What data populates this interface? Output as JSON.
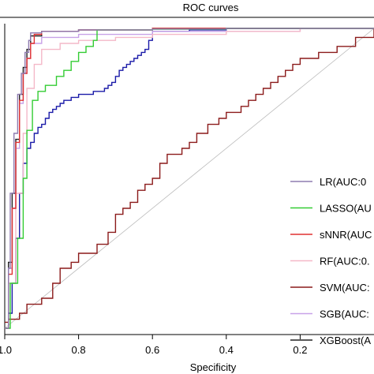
{
  "chart_data": {
    "type": "line",
    "title": "ROC curves",
    "xlabel": "Specificity",
    "ylabel": "",
    "xlim": [
      1.0,
      0.0
    ],
    "ylim": [
      0.0,
      1.0
    ],
    "x_reversed": true,
    "x_ticks": [
      {
        "value": 1.0,
        "label": "1.0"
      },
      {
        "value": 0.8,
        "label": "0.8"
      },
      {
        "value": 0.6,
        "label": "0.6"
      },
      {
        "value": 0.4,
        "label": "0.4"
      },
      {
        "value": 0.2,
        "label": "0.2"
      }
    ],
    "grid": false,
    "legend_position": "right",
    "reference_line": {
      "color": "#bbbbbb",
      "from": [
        1.0,
        0.0
      ],
      "to": [
        0.0,
        1.0
      ]
    },
    "series": [
      {
        "name": "LR(AUC:0",
        "color": "#8e7bb0",
        "x": [
          1.0,
          0.99,
          0.985,
          0.975,
          0.965,
          0.955,
          0.945,
          0.935,
          0.93,
          0.9,
          0.8,
          0.6,
          0.4,
          0.2,
          0.0
        ],
        "y": [
          0.0,
          0.2,
          0.45,
          0.65,
          0.78,
          0.85,
          0.92,
          0.96,
          0.985,
          0.99,
          0.995,
          0.998,
          1.0,
          1.0,
          1.0
        ]
      },
      {
        "name": "LASSO(AU",
        "color": "#33cc33",
        "x": [
          1.0,
          0.985,
          0.965,
          0.95,
          0.94,
          0.925,
          0.91,
          0.89,
          0.86,
          0.84,
          0.82,
          0.8,
          0.78,
          0.76,
          0.75,
          0.7,
          0.6,
          0.4,
          0.2,
          0.0
        ],
        "y": [
          0.0,
          0.15,
          0.3,
          0.5,
          0.66,
          0.76,
          0.79,
          0.81,
          0.84,
          0.86,
          0.89,
          0.92,
          0.94,
          0.96,
          0.995,
          0.995,
          0.997,
          1.0,
          1.0,
          1.0
        ]
      },
      {
        "name": "sNNR(AUC",
        "color": "#e03030",
        "x": [
          1.0,
          0.99,
          0.98,
          0.97,
          0.96,
          0.95,
          0.94,
          0.93,
          0.92,
          0.9,
          0.8,
          0.6,
          0.4,
          0.2,
          0.0
        ],
        "y": [
          0.0,
          0.18,
          0.4,
          0.62,
          0.76,
          0.85,
          0.9,
          0.95,
          0.98,
          0.99,
          0.995,
          1.0,
          1.0,
          1.0,
          1.0
        ]
      },
      {
        "name": "RF(AUC:0.",
        "color": "#f4b8c8",
        "x": [
          1.0,
          0.99,
          0.97,
          0.95,
          0.94,
          0.92,
          0.9,
          0.85,
          0.8,
          0.7,
          0.6,
          0.4,
          0.2,
          0.0
        ],
        "y": [
          0.0,
          0.15,
          0.45,
          0.65,
          0.8,
          0.88,
          0.93,
          0.95,
          0.96,
          0.97,
          0.98,
          0.99,
          1.0,
          1.0
        ]
      },
      {
        "name": "SVM(AUC:",
        "color": "#8b1a1a",
        "x": [
          1.0,
          0.99,
          0.96,
          0.94,
          0.9,
          0.87,
          0.85,
          0.82,
          0.8,
          0.75,
          0.72,
          0.7,
          0.68,
          0.66,
          0.64,
          0.62,
          0.6,
          0.58,
          0.56,
          0.52,
          0.5,
          0.48,
          0.45,
          0.42,
          0.4,
          0.36,
          0.34,
          0.32,
          0.3,
          0.28,
          0.26,
          0.24,
          0.22,
          0.2,
          0.15,
          0.1,
          0.05,
          0.0
        ],
        "y": [
          0.02,
          0.03,
          0.05,
          0.08,
          0.1,
          0.15,
          0.2,
          0.22,
          0.25,
          0.28,
          0.32,
          0.38,
          0.4,
          0.42,
          0.46,
          0.48,
          0.5,
          0.55,
          0.58,
          0.6,
          0.62,
          0.65,
          0.68,
          0.7,
          0.72,
          0.74,
          0.76,
          0.78,
          0.8,
          0.82,
          0.84,
          0.86,
          0.88,
          0.9,
          0.92,
          0.94,
          0.97,
          1.0
        ]
      },
      {
        "name": "SGB(AUC:",
        "color": "#c8a2e8",
        "x": [
          1.0,
          0.99,
          0.98,
          0.97,
          0.96,
          0.95,
          0.94,
          0.93,
          0.9,
          0.8,
          0.6,
          0.4,
          0.3,
          0.2,
          0.1,
          0.0
        ],
        "y": [
          0.0,
          0.2,
          0.4,
          0.6,
          0.75,
          0.85,
          0.9,
          0.95,
          0.97,
          0.98,
          0.99,
          0.99,
          0.99,
          1.0,
          1.0,
          1.0
        ]
      },
      {
        "name": "XGBoost(A",
        "color": "#222222",
        "x": [
          1.0,
          0.99,
          0.98,
          0.97,
          0.96,
          0.95,
          0.94,
          0.93,
          0.9,
          0.8,
          0.6,
          0.4,
          0.2,
          0.0
        ],
        "y": [
          0.0,
          0.22,
          0.45,
          0.63,
          0.78,
          0.87,
          0.93,
          0.975,
          0.99,
          0.995,
          1.0,
          1.0,
          1.0,
          1.0
        ]
      },
      {
        "name": "",
        "color": "#1a1aa8",
        "x": [
          1.0,
          0.99,
          0.98,
          0.97,
          0.96,
          0.95,
          0.94,
          0.93,
          0.92,
          0.91,
          0.9,
          0.89,
          0.88,
          0.87,
          0.86,
          0.85,
          0.84,
          0.83,
          0.82,
          0.81,
          0.8,
          0.79,
          0.78,
          0.77,
          0.76,
          0.75,
          0.74,
          0.73,
          0.72,
          0.71,
          0.7,
          0.69,
          0.68,
          0.67,
          0.66,
          0.65,
          0.64,
          0.63,
          0.62,
          0.61,
          0.6,
          0.5,
          0.4,
          0.2,
          0.0
        ],
        "y": [
          0.0,
          0.05,
          0.15,
          0.3,
          0.45,
          0.55,
          0.6,
          0.62,
          0.65,
          0.67,
          0.68,
          0.7,
          0.72,
          0.73,
          0.74,
          0.75,
          0.76,
          0.76,
          0.77,
          0.77,
          0.78,
          0.78,
          0.78,
          0.78,
          0.79,
          0.79,
          0.79,
          0.8,
          0.81,
          0.82,
          0.84,
          0.86,
          0.87,
          0.88,
          0.89,
          0.9,
          0.91,
          0.92,
          0.93,
          0.96,
          0.99,
          0.995,
          1.0,
          1.0,
          1.0
        ]
      }
    ]
  }
}
